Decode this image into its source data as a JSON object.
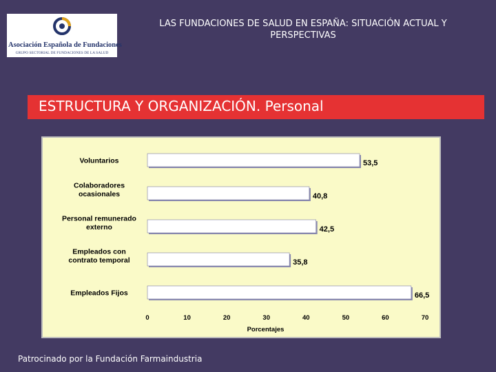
{
  "header": {
    "title": "LAS FUNDACIONES DE SALUD EN ESPAÑA: SITUACIÓN ACTUAL Y PERSPECTIVAS",
    "logo_name": "Asociación Española de Fundaciones",
    "logo_subtitle": "GRUPO SECTORIAL DE FUNDACIONES DE LA SALUD"
  },
  "section": {
    "title": "ESTRUCTURA Y ORGANIZACIÓN. Personal"
  },
  "footer": {
    "text": "Patrocinado por la Fundación Farmaindustria"
  },
  "colors": {
    "background": "#433a62",
    "section_bar": "#e53233",
    "chart_background": "#fafac8",
    "bar_fill": "#ffffff",
    "bar_shadow": "#8a8ab0"
  },
  "chart_data": {
    "type": "bar",
    "orientation": "horizontal",
    "categories": [
      [
        "Voluntarios"
      ],
      [
        "Colaboradores",
        "ocasionales"
      ],
      [
        "Personal remunerado",
        "externo"
      ],
      [
        "Empleados con",
        "contrato temporal"
      ],
      [
        "Empleados Fijos"
      ]
    ],
    "values": [
      53.5,
      40.8,
      42.5,
      35.8,
      66.5
    ],
    "value_labels": [
      "53,5",
      "40,8",
      "42,5",
      "35,8",
      "66,5"
    ],
    "xlabel": "Porcentajes",
    "xlim": [
      0,
      70
    ],
    "xticks": [
      0,
      10,
      20,
      30,
      40,
      50,
      60,
      70
    ],
    "grid": false,
    "legend": "none"
  }
}
